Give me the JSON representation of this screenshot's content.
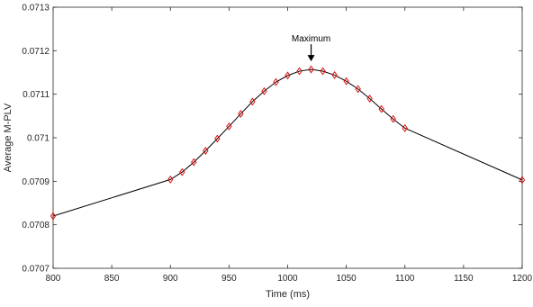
{
  "chart_data": {
    "type": "line",
    "title": "",
    "xlabel": "Time (ms)",
    "ylabel": "Average M-PLV",
    "xlim": [
      800,
      1200
    ],
    "ylim": [
      0.0707,
      0.0713
    ],
    "xticks": [
      800,
      850,
      900,
      950,
      1000,
      1050,
      1100,
      1150,
      1200
    ],
    "xtick_labels": [
      "800",
      "850",
      "900",
      "950",
      "1000",
      "1050",
      "1100",
      "1150",
      "1200"
    ],
    "yticks": [
      0.0707,
      0.0708,
      0.0709,
      0.071,
      0.0711,
      0.0712,
      0.0713
    ],
    "ytick_labels": [
      "0.0707",
      "0.0708",
      "0.0709",
      "0.071",
      "0.0711",
      "0.0712",
      "0.0713"
    ],
    "grid": false,
    "legend": "none",
    "line_color": "#000000",
    "marker": "diamond",
    "marker_color": "#dd1111",
    "series": [
      {
        "x": [
          800,
          900,
          910,
          920,
          930,
          940,
          950,
          960,
          970,
          980,
          990,
          1000,
          1010,
          1020,
          1030,
          1040,
          1050,
          1060,
          1070,
          1080,
          1090,
          1100,
          1200
        ],
        "values": [
          0.07082,
          0.070904,
          0.070921,
          0.070944,
          0.07097,
          0.070998,
          0.071026,
          0.071055,
          0.071083,
          0.071107,
          0.071128,
          0.071143,
          0.071153,
          0.071157,
          0.071153,
          0.071144,
          0.07113,
          0.071112,
          0.07109,
          0.071066,
          0.071043,
          0.071022,
          0.070903
        ]
      }
    ],
    "annotations": [
      {
        "text": "Maximum",
        "x": 1020,
        "y": 0.071157,
        "arrow": "down"
      }
    ]
  }
}
